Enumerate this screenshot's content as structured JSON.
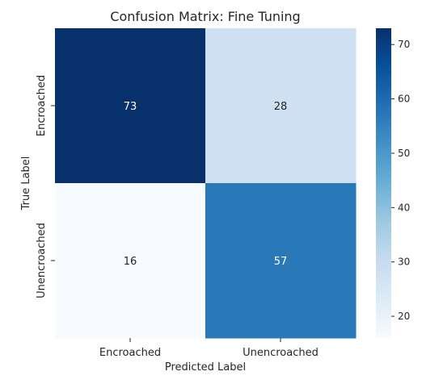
{
  "chart_data": {
    "type": "heatmap",
    "title": "Confusion Matrix: Fine Tuning",
    "xlabel": "Predicted Label",
    "ylabel": "True Label",
    "x_categories": [
      "Encroached",
      "Unencroached"
    ],
    "y_categories": [
      "Encroached",
      "Unencroached"
    ],
    "values": [
      [
        73,
        28
      ],
      [
        16,
        57
      ]
    ],
    "colormap": "Blues",
    "colorbar": {
      "vmin": 16,
      "vmax": 73,
      "ticks": [
        20,
        30,
        40,
        50,
        60,
        70
      ]
    },
    "grid": false,
    "legend": "colorbar-right"
  },
  "colors": {
    "min": "#f7fbff",
    "max": "#08306b",
    "text_dark": "#262626",
    "text_light": "#ffffff"
  }
}
